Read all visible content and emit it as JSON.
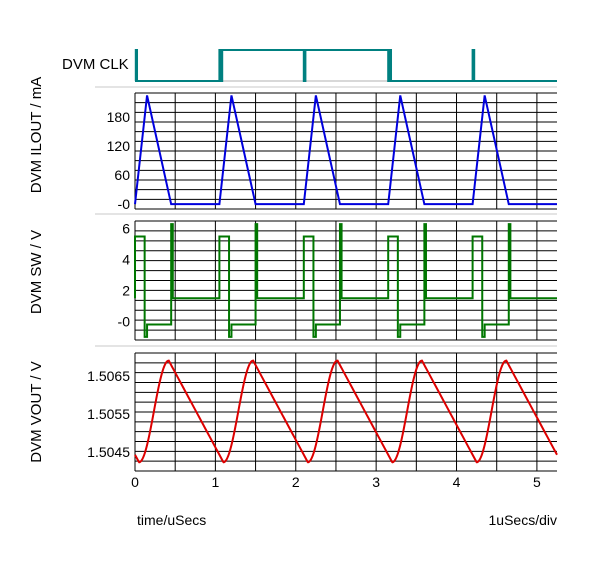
{
  "chart_data": [
    {
      "type": "line",
      "name": "clk",
      "ylabel": "DVM CLK",
      "xlim": [
        0,
        5.25
      ],
      "ylim": [
        0,
        1
      ],
      "series": [
        {
          "color": "#008080",
          "x": [
            0,
            0.01,
            0.01,
            0.025,
            0.025,
            1.05,
            1.05,
            1.07,
            1.07,
            1.085,
            1.085,
            2.1,
            2.1,
            2.12,
            2.12,
            3.15,
            3.15,
            3.17,
            3.17,
            3.185,
            3.185,
            4.2,
            4.2,
            4.22,
            4.22,
            5.25
          ],
          "y": [
            0,
            0,
            1,
            1,
            0,
            0,
            1,
            1,
            0,
            0,
            1,
            1,
            0,
            0,
            1,
            1,
            0,
            0,
            1,
            1,
            0,
            0,
            1,
            1,
            0,
            0
          ]
        }
      ]
    },
    {
      "type": "line",
      "name": "ilout",
      "ylabel": "DVM ILOUT / mA",
      "ylim": [
        -10,
        230
      ],
      "yticks": [
        "-0",
        "60",
        "120",
        "180"
      ],
      "ytick_values": [
        0,
        60,
        120,
        180
      ],
      "series": [
        {
          "color": "#0000dd",
          "x": [
            0,
            0.15,
            0.45,
            1.05,
            1.2,
            1.5,
            2.1,
            2.25,
            2.55,
            3.15,
            3.3,
            3.6,
            4.2,
            4.35,
            4.65,
            5.25
          ],
          "y": [
            0,
            225,
            0,
            0,
            225,
            0,
            0,
            225,
            0,
            0,
            225,
            0,
            0,
            225,
            0,
            0
          ]
        }
      ]
    },
    {
      "type": "line",
      "name": "sw",
      "ylabel": "DVM SW / V",
      "ylim": [
        -1.2,
        6.5
      ],
      "yticks": [
        "-0",
        "2",
        "4",
        "6"
      ],
      "ytick_values": [
        0,
        2,
        4,
        6
      ],
      "series": [
        {
          "color": "#007700",
          "x": [
            0,
            0,
            0.12,
            0.12,
            0.15,
            0.15,
            0.45,
            0.45,
            0.47,
            0.47,
            1.05,
            1.05,
            1.17,
            1.17,
            1.2,
            1.2,
            1.5,
            1.5,
            1.52,
            1.52,
            2.1,
            2.1,
            2.22,
            2.22,
            2.25,
            2.25,
            2.55,
            2.55,
            2.57,
            2.57,
            3.15,
            3.15,
            3.27,
            3.27,
            3.3,
            3.3,
            3.6,
            3.6,
            3.62,
            3.62,
            4.2,
            4.2,
            4.32,
            4.32,
            4.35,
            4.35,
            4.65,
            4.65,
            4.67,
            4.67,
            5.25
          ],
          "y": [
            1.5,
            5.5,
            5.5,
            -1.0,
            -1.0,
            -0.2,
            -0.2,
            6.3,
            6.3,
            1.5,
            1.5,
            5.5,
            5.5,
            -1.0,
            -1.0,
            -0.2,
            -0.2,
            6.3,
            6.3,
            1.5,
            1.5,
            5.5,
            5.5,
            -1.0,
            -1.0,
            -0.2,
            -0.2,
            6.3,
            6.3,
            1.5,
            1.5,
            5.5,
            5.5,
            -1.0,
            -1.0,
            -0.2,
            -0.2,
            6.3,
            6.3,
            1.5,
            1.5,
            5.5,
            5.5,
            -1.0,
            -1.0,
            -0.2,
            -0.2,
            6.3,
            6.3,
            1.5,
            1.5
          ]
        }
      ]
    },
    {
      "type": "line",
      "name": "vout",
      "ylabel": "DVM VOUT / V",
      "xlabel": "time/uSecs",
      "xlim": [
        0,
        5.25
      ],
      "ylim": [
        1.504,
        1.5071
      ],
      "yticks": [
        "1.5045",
        "1.5055",
        "1.5065"
      ],
      "ytick_values": [
        1.5045,
        1.5055,
        1.5065
      ],
      "xticks": [
        "0",
        "1",
        "2",
        "3",
        "4",
        "5"
      ],
      "xtick_values": [
        0,
        1,
        2,
        3,
        4,
        5
      ],
      "x_unit_label": "1uSecs/div",
      "series": [
        {
          "color": "#dd0000",
          "period": 1.05,
          "cycles": 5,
          "min_value": 1.50423,
          "max_value": 1.5069,
          "min_at": 0.05,
          "max_at": 0.42
        }
      ]
    }
  ]
}
